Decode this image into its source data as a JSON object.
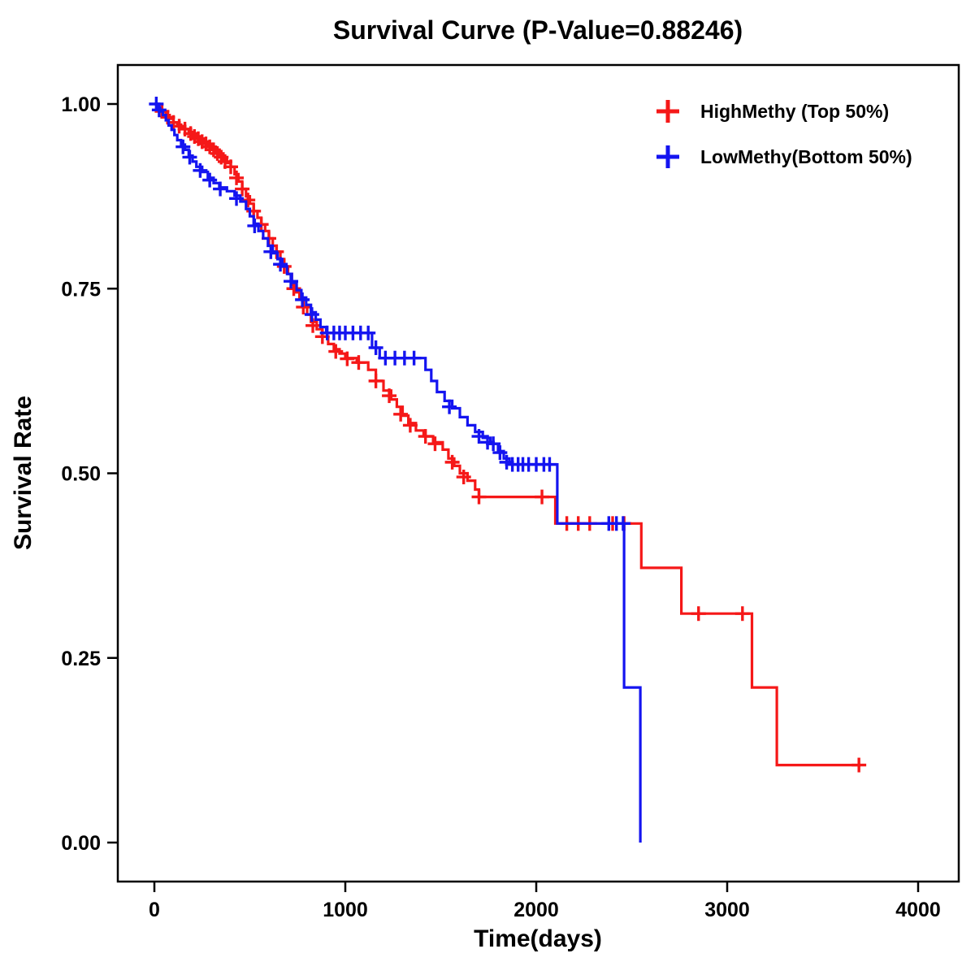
{
  "title": "Survival Curve (P-Value=0.88246)",
  "colors": {
    "high_methy": "#f51818",
    "low_methy": "#1414f0",
    "axis": "#000000",
    "background": "#ffffff",
    "text": "#000000"
  },
  "legend": [
    {
      "label": "HighMethy (Top 50%)",
      "color": "#f51818",
      "marker": "plus-cross"
    },
    {
      "label": "LowMethy(Bottom 50%)",
      "color": "#1414f0",
      "marker": "plus-cross"
    }
  ],
  "chart_data": {
    "type": "line",
    "subtype": "kaplan-meier-step",
    "title": "Survival Curve (P-Value=0.88246)",
    "p_value": "0.88246",
    "xlabel": "Time(days)",
    "ylabel": "Survival Rate",
    "xlim": [
      0,
      4000
    ],
    "ylim": [
      0.0,
      1.0
    ],
    "xticks": [
      0,
      1000,
      2000,
      3000,
      4000
    ],
    "xtick_labels": [
      "0",
      "1000",
      "2000",
      "3000",
      "4000"
    ],
    "yticks": [
      0.0,
      0.25,
      0.5,
      0.75,
      1.0
    ],
    "ytick_labels": [
      "0.00",
      "0.25",
      "0.50",
      "0.75",
      "1.00"
    ],
    "grid": false,
    "legend_position": "top-right-inside",
    "step": "post",
    "series": [
      {
        "name": "HighMethy (Top 50%)",
        "color": "#f51818",
        "points": [
          [
            0,
            1.0
          ],
          [
            20,
            0.995
          ],
          [
            40,
            0.99
          ],
          [
            60,
            0.985
          ],
          [
            80,
            0.98
          ],
          [
            100,
            0.975
          ],
          [
            120,
            0.972
          ],
          [
            140,
            0.969
          ],
          [
            160,
            0.966
          ],
          [
            180,
            0.962
          ],
          [
            200,
            0.958
          ],
          [
            220,
            0.955
          ],
          [
            240,
            0.951
          ],
          [
            260,
            0.948
          ],
          [
            280,
            0.944
          ],
          [
            300,
            0.94
          ],
          [
            320,
            0.936
          ],
          [
            340,
            0.93
          ],
          [
            360,
            0.925
          ],
          [
            380,
            0.92
          ],
          [
            400,
            0.915
          ],
          [
            420,
            0.905
          ],
          [
            440,
            0.895
          ],
          [
            460,
            0.885
          ],
          [
            480,
            0.875
          ],
          [
            500,
            0.865
          ],
          [
            520,
            0.855
          ],
          [
            540,
            0.846
          ],
          [
            560,
            0.837
          ],
          [
            580,
            0.828
          ],
          [
            600,
            0.818
          ],
          [
            620,
            0.808
          ],
          [
            640,
            0.8
          ],
          [
            660,
            0.79
          ],
          [
            680,
            0.78
          ],
          [
            700,
            0.77
          ],
          [
            720,
            0.755
          ],
          [
            740,
            0.745
          ],
          [
            760,
            0.735
          ],
          [
            780,
            0.725
          ],
          [
            800,
            0.715
          ],
          [
            820,
            0.705
          ],
          [
            850,
            0.695
          ],
          [
            880,
            0.685
          ],
          [
            910,
            0.675
          ],
          [
            940,
            0.668
          ],
          [
            970,
            0.662
          ],
          [
            1000,
            0.656
          ],
          [
            1060,
            0.65
          ],
          [
            1120,
            0.64
          ],
          [
            1160,
            0.625
          ],
          [
            1200,
            0.612
          ],
          [
            1240,
            0.6
          ],
          [
            1270,
            0.59
          ],
          [
            1300,
            0.578
          ],
          [
            1330,
            0.568
          ],
          [
            1370,
            0.558
          ],
          [
            1410,
            0.55
          ],
          [
            1460,
            0.542
          ],
          [
            1510,
            0.532
          ],
          [
            1540,
            0.52
          ],
          [
            1570,
            0.51
          ],
          [
            1600,
            0.5
          ],
          [
            1640,
            0.49
          ],
          [
            1680,
            0.478
          ],
          [
            1700,
            0.468
          ],
          [
            2100,
            0.432
          ],
          [
            2550,
            0.372
          ],
          [
            2760,
            0.31
          ],
          [
            3130,
            0.21
          ],
          [
            3260,
            0.105
          ],
          [
            3700,
            0.105
          ]
        ],
        "censors": [
          [
            40,
            0.99
          ],
          [
            70,
            0.982
          ],
          [
            100,
            0.975
          ],
          [
            130,
            0.97
          ],
          [
            160,
            0.966
          ],
          [
            190,
            0.96
          ],
          [
            210,
            0.956
          ],
          [
            230,
            0.953
          ],
          [
            250,
            0.949
          ],
          [
            270,
            0.946
          ],
          [
            290,
            0.942
          ],
          [
            310,
            0.938
          ],
          [
            330,
            0.933
          ],
          [
            350,
            0.928
          ],
          [
            370,
            0.922
          ],
          [
            400,
            0.915
          ],
          [
            430,
            0.9
          ],
          [
            460,
            0.885
          ],
          [
            490,
            0.87
          ],
          [
            520,
            0.855
          ],
          [
            560,
            0.837
          ],
          [
            600,
            0.818
          ],
          [
            640,
            0.8
          ],
          [
            680,
            0.78
          ],
          [
            730,
            0.75
          ],
          [
            780,
            0.725
          ],
          [
            830,
            0.7
          ],
          [
            880,
            0.685
          ],
          [
            950,
            0.665
          ],
          [
            1010,
            0.655
          ],
          [
            1070,
            0.65
          ],
          [
            1160,
            0.625
          ],
          [
            1230,
            0.605
          ],
          [
            1290,
            0.58
          ],
          [
            1340,
            0.565
          ],
          [
            1420,
            0.55
          ],
          [
            1470,
            0.54
          ],
          [
            1560,
            0.515
          ],
          [
            1620,
            0.495
          ],
          [
            1700,
            0.468
          ],
          [
            2030,
            0.468
          ],
          [
            2160,
            0.432
          ],
          [
            2220,
            0.432
          ],
          [
            2280,
            0.432
          ],
          [
            2400,
            0.432
          ],
          [
            2460,
            0.432
          ],
          [
            2850,
            0.31
          ],
          [
            3080,
            0.31
          ],
          [
            3690,
            0.105
          ]
        ]
      },
      {
        "name": "LowMethy(Bottom 50%)",
        "color": "#1414f0",
        "points": [
          [
            0,
            1.0
          ],
          [
            15,
            0.995
          ],
          [
            30,
            0.99
          ],
          [
            45,
            0.985
          ],
          [
            60,
            0.978
          ],
          [
            75,
            0.971
          ],
          [
            90,
            0.965
          ],
          [
            105,
            0.958
          ],
          [
            120,
            0.951
          ],
          [
            140,
            0.945
          ],
          [
            160,
            0.938
          ],
          [
            180,
            0.93
          ],
          [
            200,
            0.922
          ],
          [
            220,
            0.915
          ],
          [
            250,
            0.908
          ],
          [
            280,
            0.9
          ],
          [
            310,
            0.893
          ],
          [
            340,
            0.887
          ],
          [
            380,
            0.882
          ],
          [
            420,
            0.876
          ],
          [
            450,
            0.868
          ],
          [
            480,
            0.858
          ],
          [
            500,
            0.848
          ],
          [
            520,
            0.838
          ],
          [
            545,
            0.828
          ],
          [
            570,
            0.818
          ],
          [
            595,
            0.808
          ],
          [
            620,
            0.798
          ],
          [
            645,
            0.79
          ],
          [
            670,
            0.78
          ],
          [
            695,
            0.77
          ],
          [
            720,
            0.758
          ],
          [
            745,
            0.748
          ],
          [
            770,
            0.738
          ],
          [
            795,
            0.728
          ],
          [
            820,
            0.718
          ],
          [
            845,
            0.708
          ],
          [
            870,
            0.698
          ],
          [
            900,
            0.69
          ],
          [
            1140,
            0.67
          ],
          [
            1180,
            0.656
          ],
          [
            1420,
            0.64
          ],
          [
            1450,
            0.625
          ],
          [
            1480,
            0.61
          ],
          [
            1520,
            0.598
          ],
          [
            1560,
            0.588
          ],
          [
            1600,
            0.576
          ],
          [
            1640,
            0.565
          ],
          [
            1680,
            0.556
          ],
          [
            1720,
            0.548
          ],
          [
            1760,
            0.54
          ],
          [
            1800,
            0.53
          ],
          [
            1830,
            0.52
          ],
          [
            1860,
            0.512
          ],
          [
            2110,
            0.432
          ],
          [
            2460,
            0.21
          ],
          [
            2545,
            0.0
          ]
        ],
        "censors": [
          [
            10,
            1.0
          ],
          [
            25,
            0.992
          ],
          [
            150,
            0.942
          ],
          [
            185,
            0.928
          ],
          [
            240,
            0.91
          ],
          [
            290,
            0.897
          ],
          [
            345,
            0.885
          ],
          [
            430,
            0.872
          ],
          [
            525,
            0.835
          ],
          [
            610,
            0.8
          ],
          [
            660,
            0.783
          ],
          [
            715,
            0.76
          ],
          [
            775,
            0.735
          ],
          [
            825,
            0.715
          ],
          [
            905,
            0.69
          ],
          [
            940,
            0.69
          ],
          [
            970,
            0.69
          ],
          [
            1000,
            0.69
          ],
          [
            1040,
            0.69
          ],
          [
            1080,
            0.69
          ],
          [
            1120,
            0.69
          ],
          [
            1160,
            0.67
          ],
          [
            1210,
            0.656
          ],
          [
            1260,
            0.656
          ],
          [
            1310,
            0.656
          ],
          [
            1360,
            0.656
          ],
          [
            1545,
            0.59
          ],
          [
            1700,
            0.55
          ],
          [
            1745,
            0.542
          ],
          [
            1775,
            0.54
          ],
          [
            1810,
            0.528
          ],
          [
            1845,
            0.515
          ],
          [
            1875,
            0.512
          ],
          [
            1905,
            0.512
          ],
          [
            1930,
            0.512
          ],
          [
            1960,
            0.512
          ],
          [
            2000,
            0.512
          ],
          [
            2040,
            0.512
          ],
          [
            2070,
            0.512
          ],
          [
            2380,
            0.432
          ],
          [
            2420,
            0.432
          ],
          [
            2455,
            0.432
          ]
        ]
      }
    ]
  }
}
